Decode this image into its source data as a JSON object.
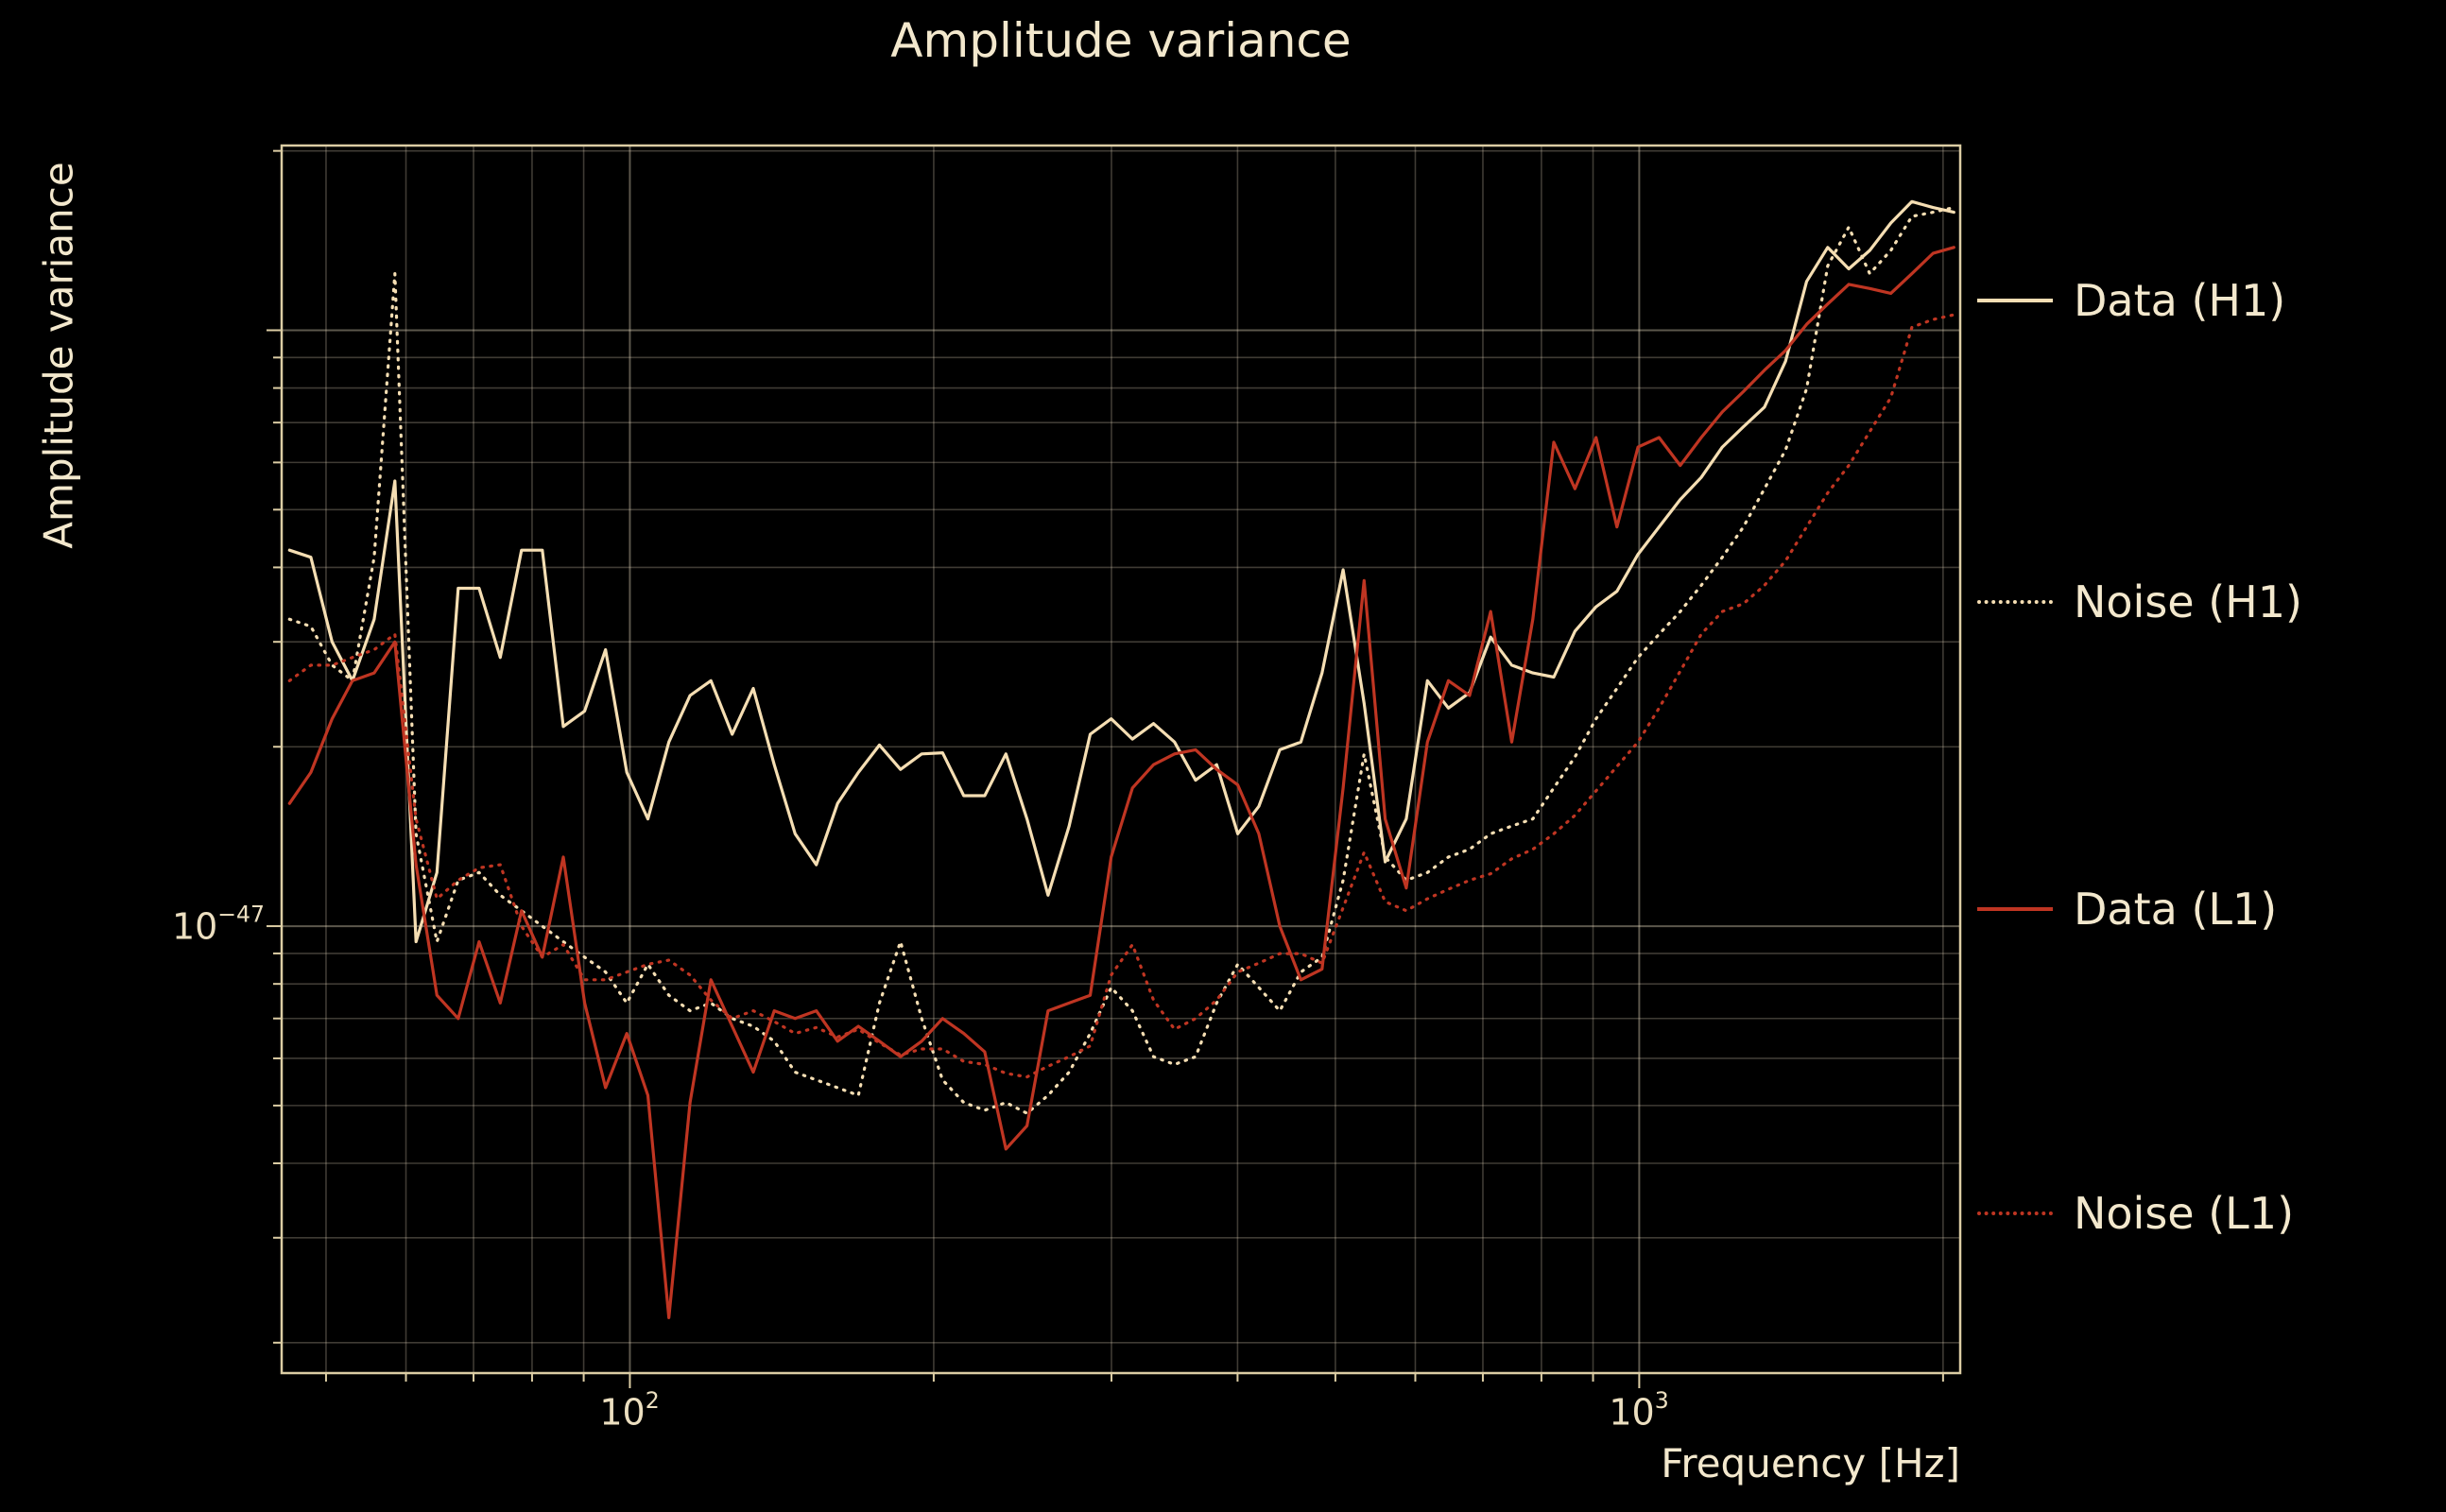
{
  "title": "Amplitude variance",
  "colors": {
    "background": "#000000",
    "text": "#f3e8cd",
    "wheat": "#f5deb3",
    "red": "#bf3522",
    "grid_major": "rgba(243,229,199,0.38)",
    "grid_minor": "rgba(243,229,199,0.26)",
    "spine": "#dccda4"
  },
  "axes": {
    "xlabel": "Frequency [Hz]",
    "ylabel": "Amplitude variance",
    "x_tick_labels": [
      {
        "base": "10",
        "exponent": "2"
      },
      {
        "base": "10",
        "exponent": "3"
      }
    ],
    "y_tick_labels": [
      {
        "base": "10",
        "exponent": "−47"
      }
    ]
  },
  "legend": {
    "entries": [
      {
        "label": "Data (H1)"
      },
      {
        "label": "Noise (H1)"
      },
      {
        "label": "Data (L1)"
      },
      {
        "label": "Noise (L1)"
      }
    ]
  },
  "chart_data": {
    "type": "line",
    "title": "Amplitude variance",
    "xlabel": "Frequency [Hz]",
    "ylabel": "Amplitude variance",
    "xscale": "log",
    "yscale": "log",
    "grid": true,
    "legend_position": "right-outside",
    "xlim_log10": [
      1.655,
      3.318
    ],
    "ylim_log10": [
      -47.75,
      -45.69
    ],
    "x_hz": [
      46.0,
      48.3,
      50.7,
      53.1,
      55.8,
      58.5,
      61.4,
      64.4,
      67.6,
      70.9,
      74.4,
      78.1,
      81.9,
      85.9,
      90.2,
      94.6,
      99.3,
      104.2,
      109.3,
      114.7,
      120.3,
      126.3,
      132.5,
      139.0,
      145.8,
      153.0,
      160.6,
      168.4,
      176.7,
      185.4,
      194.6,
      204.1,
      214.2,
      224.7,
      235.8,
      247.4,
      259.6,
      272.4,
      285.8,
      299.8,
      314.7,
      330.2,
      346.4,
      363.5,
      381.4,
      400.2,
      419.9,
      440.5,
      462.2,
      485.0,
      508.9,
      533.9,
      560.2,
      587.8,
      616.8,
      647.1,
      679.1,
      712.5,
      747.6,
      784.4,
      823.0,
      863.6,
      906.1,
      950.4,
      997.2,
      1046.4,
      1098.0,
      1152.0,
      1208.7,
      1268.3,
      1330.7,
      1396.2,
      1465.0,
      1537.1,
      1612.8,
      1692.1,
      1775.4,
      1862.8,
      1954.5,
      2050.0
    ],
    "series": [
      {
        "name": "Data (H1)",
        "color": "#f5deb3",
        "line_style": "solid",
        "log10_amplitude": [
          -46.369,
          -46.381,
          -46.523,
          -46.588,
          -46.485,
          -46.253,
          -47.026,
          -46.91,
          -46.433,
          -46.433,
          -46.549,
          -46.369,
          -46.369,
          -46.665,
          -46.639,
          -46.536,
          -46.742,
          -46.82,
          -46.691,
          -46.613,
          -46.588,
          -46.678,
          -46.601,
          -46.729,
          -46.845,
          -46.897,
          -46.794,
          -46.742,
          -46.696,
          -46.737,
          -46.711,
          -46.709,
          -46.781,
          -46.781,
          -46.711,
          -46.82,
          -46.948,
          -46.832,
          -46.678,
          -46.652,
          -46.686,
          -46.66,
          -46.691,
          -46.755,
          -46.729,
          -46.845,
          -46.799,
          -46.704,
          -46.691,
          -46.575,
          -46.402,
          -46.626,
          -46.892,
          -46.82,
          -46.588,
          -46.634,
          -46.608,
          -46.515,
          -46.562,
          -46.575,
          -46.582,
          -46.505,
          -46.464,
          -46.438,
          -46.376,
          -46.33,
          -46.284,
          -46.247,
          -46.196,
          -46.162,
          -46.129,
          -46.052,
          -45.918,
          -45.861,
          -45.897,
          -45.866,
          -45.82,
          -45.784,
          -45.794,
          -45.802
        ]
      },
      {
        "name": "Noise (H1)",
        "color": "#f5deb3",
        "line_style": "dotted",
        "log10_amplitude": [
          -46.485,
          -46.497,
          -46.562,
          -46.588,
          -46.381,
          -45.905,
          -46.845,
          -47.026,
          -46.923,
          -46.91,
          -46.948,
          -46.974,
          -47.0,
          -47.026,
          -47.052,
          -47.077,
          -47.129,
          -47.064,
          -47.116,
          -47.142,
          -47.129,
          -47.155,
          -47.168,
          -47.193,
          -47.245,
          -47.258,
          -47.271,
          -47.284,
          -47.129,
          -47.026,
          -47.155,
          -47.258,
          -47.296,
          -47.309,
          -47.296,
          -47.314,
          -47.284,
          -47.245,
          -47.18,
          -47.103,
          -47.142,
          -47.219,
          -47.232,
          -47.219,
          -47.129,
          -47.064,
          -47.103,
          -47.142,
          -47.077,
          -47.052,
          -46.923,
          -46.711,
          -46.884,
          -46.923,
          -46.91,
          -46.884,
          -46.871,
          -46.845,
          -46.832,
          -46.82,
          -46.768,
          -46.716,
          -46.652,
          -46.601,
          -46.549,
          -46.51,
          -46.472,
          -46.428,
          -46.381,
          -46.33,
          -46.266,
          -46.201,
          -46.098,
          -45.892,
          -45.827,
          -45.905,
          -45.866,
          -45.809,
          -45.802,
          -45.794
        ]
      },
      {
        "name": "Data (L1)",
        "color": "#bf3522",
        "line_style": "solid",
        "log10_amplitude": [
          -46.794,
          -46.742,
          -46.652,
          -46.588,
          -46.575,
          -46.523,
          -46.897,
          -47.116,
          -47.155,
          -47.026,
          -47.129,
          -46.974,
          -47.052,
          -46.884,
          -47.129,
          -47.271,
          -47.18,
          -47.284,
          -47.657,
          -47.296,
          -47.09,
          -47.168,
          -47.245,
          -47.142,
          -47.155,
          -47.142,
          -47.193,
          -47.168,
          -47.193,
          -47.219,
          -47.193,
          -47.155,
          -47.18,
          -47.211,
          -47.374,
          -47.335,
          -47.142,
          -47.129,
          -47.116,
          -46.884,
          -46.768,
          -46.729,
          -46.711,
          -46.704,
          -46.737,
          -46.763,
          -46.845,
          -47.0,
          -47.09,
          -47.072,
          -46.768,
          -46.42,
          -46.82,
          -46.936,
          -46.691,
          -46.588,
          -46.613,
          -46.472,
          -46.691,
          -46.485,
          -46.188,
          -46.266,
          -46.18,
          -46.33,
          -46.196,
          -46.18,
          -46.227,
          -46.18,
          -46.137,
          -46.103,
          -46.067,
          -46.034,
          -45.99,
          -45.956,
          -45.923,
          -45.93,
          -45.938,
          -45.905,
          -45.871,
          -45.861
        ]
      },
      {
        "name": "Noise (L1)",
        "color": "#bf3522",
        "line_style": "dotted",
        "log10_amplitude": [
          -46.588,
          -46.562,
          -46.562,
          -46.549,
          -46.536,
          -46.51,
          -46.82,
          -46.954,
          -46.923,
          -46.902,
          -46.897,
          -47.0,
          -47.052,
          -47.031,
          -47.09,
          -47.09,
          -47.077,
          -47.064,
          -47.057,
          -47.082,
          -47.124,
          -47.155,
          -47.142,
          -47.16,
          -47.18,
          -47.17,
          -47.186,
          -47.173,
          -47.196,
          -47.216,
          -47.206,
          -47.206,
          -47.227,
          -47.232,
          -47.247,
          -47.253,
          -47.235,
          -47.219,
          -47.201,
          -47.082,
          -47.031,
          -47.124,
          -47.173,
          -47.155,
          -47.124,
          -47.077,
          -47.062,
          -47.046,
          -47.046,
          -47.062,
          -46.969,
          -46.876,
          -46.959,
          -46.974,
          -46.954,
          -46.938,
          -46.923,
          -46.912,
          -46.887,
          -46.871,
          -46.845,
          -46.814,
          -46.773,
          -46.732,
          -46.691,
          -46.634,
          -46.572,
          -46.51,
          -46.472,
          -46.459,
          -46.428,
          -46.387,
          -46.33,
          -46.273,
          -46.227,
          -46.17,
          -46.113,
          -45.995,
          -45.982,
          -45.974
        ]
      }
    ]
  }
}
